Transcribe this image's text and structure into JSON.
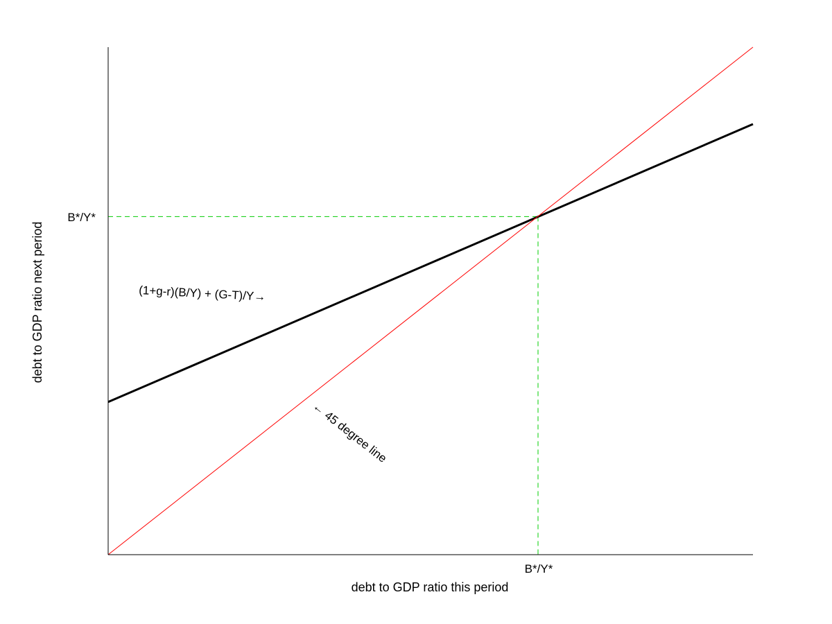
{
  "chart_data": {
    "type": "line",
    "title": "",
    "xlabel": "debt to GDP ratio this period",
    "ylabel": "debt to GDP ratio next period",
    "xlim": [
      0,
      1.5
    ],
    "ylim": [
      0,
      1.18
    ],
    "grid": false,
    "legend": "none",
    "x_tick_labels": [
      {
        "x": 1.0,
        "label": "B*/Y*"
      }
    ],
    "y_tick_labels": [
      {
        "y": 0.786,
        "label": "B*/Y*"
      }
    ],
    "series": [
      {
        "key": "dynamics",
        "x": [
          0,
          1.5
        ],
        "y": [
          0.355,
          1.001
        ],
        "color": "#000000"
      },
      {
        "key": "diagonal",
        "x": [
          0,
          1.5
        ],
        "y": [
          0,
          1.18
        ],
        "color": "#ff0000"
      }
    ],
    "guides": {
      "x": 1.0,
      "y": 0.786,
      "color": "#00cc00"
    },
    "annotations": {
      "dynamics_label": "(1+g-r)(B/Y) + (G-T)/Y→",
      "diagonal_label": "← 45 degree line"
    }
  }
}
